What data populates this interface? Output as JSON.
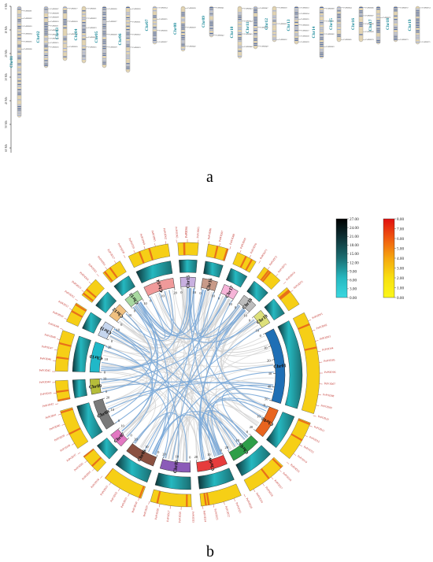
{
  "panels": {
    "a": {
      "label": "a",
      "axis_ticks": [
        "0 Mb",
        "10 Mb",
        "20 Mb",
        "30 Mb",
        "40 Mb",
        "50 Mb",
        "60 Mb"
      ],
      "chromosomes": [
        {
          "name": "Chr01",
          "length": 47,
          "genes": [
            "PePOD01",
            "PePOD02",
            "PePOD03",
            "PePOD04",
            "PePOD05",
            "PePOD06"
          ]
        },
        {
          "name": "Chr02",
          "length": 26,
          "genes": [
            "PePOD07",
            "PePOD08",
            "PePOD09",
            "PePOD10",
            "PePOD11",
            "PePOD12",
            "PePOD13",
            "PePOD14",
            "PePOD15",
            "PePOD16"
          ]
        },
        {
          "name": "Chr03",
          "length": 23,
          "genes": [
            "PePOD17",
            "PePOD18",
            "PePOD19",
            "PePOD20"
          ]
        },
        {
          "name": "Chr04",
          "length": 24,
          "genes": [
            "PePOD21",
            "PePOD22",
            "PePOD23",
            "PePOD24",
            "PePOD25"
          ]
        },
        {
          "name": "Chr05",
          "length": 26,
          "genes": [
            "PePOD26",
            "PePOD27",
            "PePOD28",
            "PePOD29"
          ]
        },
        {
          "name": "Chr06",
          "length": 28,
          "genes": [
            "PePOD30",
            "PePOD31",
            "PePOD32",
            "PePOD33"
          ]
        },
        {
          "name": "Chr07",
          "length": 16,
          "genes": [
            "PePOD34",
            "PePOD35",
            "PePOD36",
            "PePOD37"
          ]
        },
        {
          "name": "Chr08",
          "length": 19,
          "genes": [
            "PePOD38",
            "PePOD39",
            "PePOD40"
          ]
        },
        {
          "name": "Chr09",
          "length": 13,
          "genes": [
            "PePOD41",
            "PePOD42"
          ]
        },
        {
          "name": "Chr10",
          "length": 22,
          "genes": [
            "PePOD43",
            "PePOD44",
            "PePOD45",
            "PePOD46"
          ]
        },
        {
          "name": "Chr11",
          "length": 18,
          "genes": [
            "PePOD47",
            "PePOD48",
            "PePOD49"
          ]
        },
        {
          "name": "Chr12",
          "length": 15,
          "genes": [
            "PePOD50",
            "PePOD51",
            "PePOD52"
          ]
        },
        {
          "name": "Chr13",
          "length": 16,
          "genes": [
            "PePOD53",
            "PePOD54",
            "PePOD55",
            "PePOD56",
            "PePOD57",
            "PePOD58",
            "PePOD59"
          ]
        },
        {
          "name": "Chr14",
          "length": 22,
          "genes": [
            "PePOD60",
            "PePOD61",
            "PePOD62",
            "PePOD63"
          ]
        },
        {
          "name": "Chr15",
          "length": 15,
          "genes": [
            "PePOD64",
            "PePOD65"
          ]
        },
        {
          "name": "Chr16",
          "length": 15,
          "genes": [
            "PePOD66",
            "PePOD67",
            "PePOD68",
            "PePOD69",
            "PePOD70"
          ]
        },
        {
          "name": "Chr17",
          "length": 16,
          "genes": [
            "PePOD71"
          ]
        },
        {
          "name": "Chr18",
          "length": 15,
          "genes": [
            "PePOD72",
            "PePOD73"
          ]
        },
        {
          "name": "Chr19",
          "length": 16,
          "genes": [
            "PePOD74",
            "PePOD75"
          ]
        }
      ]
    },
    "b": {
      "label": "b",
      "chromosomes": [
        {
          "name": "Chr01",
          "length": 50,
          "ticks": [
            "0",
            "10",
            "20",
            "30",
            "40",
            "50"
          ],
          "color": "#1f6fb5"
        },
        {
          "name": "Chr02",
          "length": 20,
          "ticks": [
            "0",
            "10",
            "20"
          ],
          "color": "#e8641e"
        },
        {
          "name": "Chr03",
          "length": 20,
          "ticks": [
            "0",
            "10",
            "20"
          ],
          "color": "#2e9e48"
        },
        {
          "name": "Chr04",
          "length": 20,
          "ticks": [
            "0",
            "10",
            "20"
          ],
          "color": "#e63c3c"
        },
        {
          "name": "Chr05",
          "length": 20,
          "ticks": [
            "0",
            "10",
            "20"
          ],
          "color": "#8b5bb8"
        },
        {
          "name": "Chr06",
          "length": 20,
          "ticks": [
            "0",
            "10",
            "20"
          ],
          "color": "#8a5040"
        },
        {
          "name": "Chr07",
          "length": 10,
          "ticks": [
            "0",
            "10"
          ],
          "color": "#e278c2"
        },
        {
          "name": "Chr08",
          "length": 20,
          "ticks": [
            "0",
            "10",
            "20"
          ],
          "color": "#7a7a7a"
        },
        {
          "name": "Chr09",
          "length": 10,
          "ticks": [
            "0",
            "10"
          ],
          "color": "#b5bd3a"
        },
        {
          "name": "Chr10",
          "length": 20,
          "ticks": [
            "0",
            "10",
            "20"
          ],
          "color": "#20b8c8"
        },
        {
          "name": "Chr11",
          "length": 10,
          "ticks": [
            "0",
            "10"
          ],
          "color": "#c6d6ee"
        },
        {
          "name": "Chr12",
          "length": 10,
          "ticks": [
            "0",
            "10"
          ],
          "color": "#f0c080"
        },
        {
          "name": "Chr13",
          "length": 10,
          "ticks": [
            "0",
            "10"
          ],
          "color": "#a8d8a0"
        },
        {
          "name": "Chr14",
          "length": 20,
          "ticks": [
            "0",
            "10",
            "20"
          ],
          "color": "#f09a9a"
        },
        {
          "name": "Chr15",
          "length": 10,
          "ticks": [
            "0",
            "10"
          ],
          "color": "#c8b0e0"
        },
        {
          "name": "Chr16",
          "length": 10,
          "ticks": [
            "0",
            "10"
          ],
          "color": "#c89a88"
        },
        {
          "name": "Chr17",
          "length": 10,
          "ticks": [
            "0",
            "10"
          ],
          "color": "#f6b4d8"
        },
        {
          "name": "Chr18",
          "length": 10,
          "ticks": [
            "0",
            "10"
          ],
          "color": "#bdbdbd"
        },
        {
          "name": "Chr19",
          "length": 10,
          "ticks": [
            "0",
            "10"
          ],
          "color": "#dde07a"
        }
      ],
      "legend_density": {
        "ticks": [
          "27.00",
          "24.00",
          "21.00",
          "18.00",
          "15.00",
          "12.00",
          "9.00",
          "6.00",
          "3.00",
          "0.00"
        ],
        "colors": [
          "#000000",
          "#0e3438",
          "#1b6e72",
          "#25b8c0",
          "#3ad8e0"
        ]
      },
      "legend_heat": {
        "ticks": [
          "8.00",
          "7.00",
          "6.00",
          "5.00",
          "4.00",
          "3.00",
          "2.00",
          "1.00",
          "0.00"
        ],
        "colors": [
          "#e01010",
          "#f05a10",
          "#f5a70f",
          "#f8e010",
          "#fbf71a"
        ]
      },
      "gene_labels": [
        "PePOD01",
        "PePOD02",
        "PePOD03",
        "PePOD04",
        "PePOD05",
        "PePOD06",
        "PePOD07",
        "PePOD08",
        "PePOD09",
        "PePOD10",
        "PePOD11",
        "PePOD12",
        "PePOD13",
        "PePOD14",
        "PePOD15",
        "PePOD16",
        "PePOD17",
        "PePOD18",
        "PePOD19",
        "PePOD20",
        "PePOD21",
        "PePOD22",
        "PePOD23",
        "PePOD24",
        "PePOD25",
        "PePOD26",
        "PePOD27",
        "PePOD28",
        "PePOD29",
        "PePOD30",
        "PePOD31",
        "PePOD32",
        "PePOD33",
        "PePOD34",
        "PePOD35",
        "PePOD36",
        "PePOD37",
        "PePOD38",
        "PePOD39",
        "PePOD40",
        "PePOD41",
        "PePOD42",
        "PePOD43",
        "PePOD44",
        "PePOD45",
        "PePOD46",
        "PePOD47",
        "PePOD48",
        "PePOD49",
        "PePOD50",
        "PePOD51",
        "PePOD52",
        "PePOD53",
        "PePOD54",
        "PePOD55",
        "PePOD56",
        "PePOD57",
        "PePOD58",
        "PePOD59",
        "PePOD60",
        "PePOD61",
        "PePOD62",
        "PePOD63",
        "PePOD64",
        "PePOD65",
        "PePOD66",
        "PePOD67",
        "PePOD68",
        "PePOD69",
        "PePOD70",
        "PePOD71",
        "PePOD72",
        "PePOD73",
        "PePOD74",
        "PePOD75"
      ]
    }
  },
  "colors": {
    "chrom_fill": "#e8dcc0",
    "band": "#2a4fa0",
    "label_text": "#1a8a9a",
    "link": "#7aa8d8",
    "link_grey": "#cfcfcf",
    "gene_red": "#c0302a"
  }
}
